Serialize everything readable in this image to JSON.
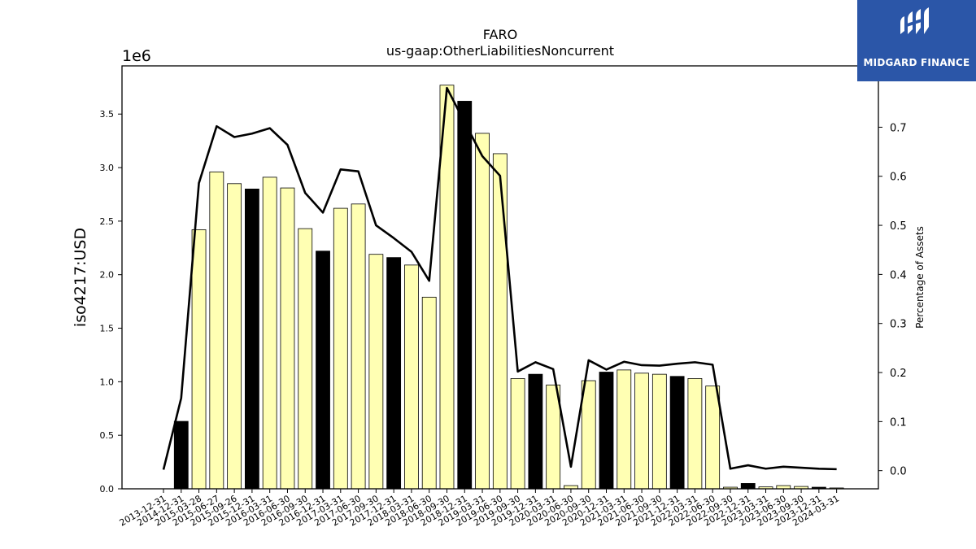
{
  "brand": {
    "name": "MIDGARD FINANCE",
    "background_color": "#2b56a8",
    "text_color": "#ffffff",
    "icon": "midgard-logo-icon"
  },
  "chart_data": {
    "type": "bar",
    "title": "FARO",
    "subtitle": "us-gaap:OtherLiabilitiesNoncurrent",
    "ylabel": "iso4217:USD",
    "y2label": "Percentage of Assets",
    "y_offset_label": "1e6",
    "ylim": [
      0,
      3950000
    ],
    "y2lim": [
      -0.037,
      0.825
    ],
    "yticks": [
      0.0,
      0.5,
      1.0,
      1.5,
      2.0,
      2.5,
      3.0,
      3.5
    ],
    "y2ticks": [
      0.0,
      0.1,
      0.2,
      0.3,
      0.4,
      0.5,
      0.6,
      0.7
    ],
    "grid": false,
    "colors": {
      "bar_fill": "#ffffb3",
      "bar_highlight": "#000000",
      "bar_edge": "#000000",
      "line": "#000000"
    },
    "categories": [
      "2013-12-31",
      "2014-12-31",
      "2015-03-28",
      "2015-06-27",
      "2015-09-26",
      "2015-12-31",
      "2016-03-31",
      "2016-06-30",
      "2016-09-30",
      "2016-12-31",
      "2017-03-31",
      "2017-06-30",
      "2017-09-30",
      "2017-12-31",
      "2018-03-31",
      "2018-06-30",
      "2018-09-30",
      "2018-12-31",
      "2019-03-31",
      "2019-06-30",
      "2019-09-30",
      "2019-12-31",
      "2020-03-31",
      "2020-06-30",
      "2020-09-30",
      "2020-12-31",
      "2021-03-31",
      "2021-06-30",
      "2021-09-30",
      "2021-12-31",
      "2022-03-31",
      "2022-06-30",
      "2022-09-30",
      "2022-12-31",
      "2023-03-31",
      "2023-06-30",
      "2023-09-30",
      "2023-12-31",
      "2024-03-31"
    ],
    "series": [
      {
        "kind": "bar",
        "values": [
          0,
          630000,
          2420000,
          2960000,
          2850000,
          2800000,
          2910000,
          2810000,
          2430000,
          2220000,
          2620000,
          2660000,
          2190000,
          2160000,
          2090000,
          1790000,
          3770000,
          3620000,
          3320000,
          3130000,
          1030000,
          1070000,
          970000,
          30000,
          1010000,
          1090000,
          1110000,
          1080000,
          1070000,
          1050000,
          1030000,
          960000,
          15000,
          50000,
          18000,
          30000,
          22000,
          15000,
          8000
        ],
        "highlight": [
          false,
          true,
          false,
          false,
          false,
          true,
          false,
          false,
          false,
          true,
          false,
          false,
          false,
          true,
          false,
          false,
          false,
          true,
          false,
          false,
          false,
          true,
          false,
          false,
          false,
          true,
          false,
          false,
          false,
          true,
          false,
          false,
          false,
          true,
          false,
          false,
          false,
          true,
          false
        ]
      },
      {
        "kind": "line",
        "axis": "right",
        "values": [
          0.002,
          0.148,
          0.586,
          0.702,
          0.68,
          0.687,
          0.698,
          0.664,
          0.566,
          0.526,
          0.614,
          0.61,
          0.5,
          0.474,
          0.446,
          0.387,
          0.78,
          0.71,
          0.641,
          0.601,
          0.202,
          0.221,
          0.207,
          0.008,
          0.225,
          0.206,
          0.222,
          0.215,
          0.214,
          0.218,
          0.221,
          0.216,
          0.004,
          0.011,
          0.004,
          0.008,
          0.006,
          0.004,
          0.003
        ]
      }
    ]
  }
}
